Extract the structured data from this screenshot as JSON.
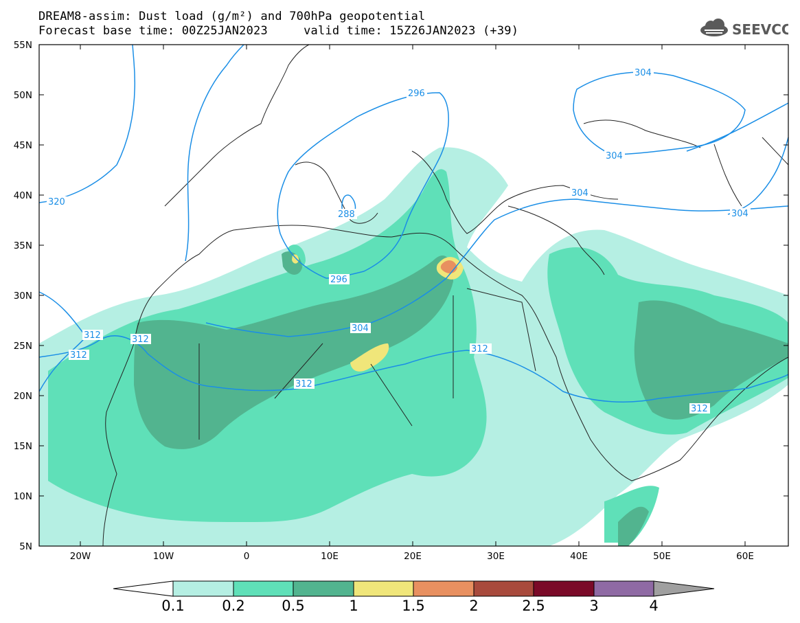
{
  "header": {
    "line1": "DREAM8-assim: Dust load (g/m²) and 700hPa geopotential",
    "line2": "Forecast base time: 00Z25JAN2023     valid time: 15Z26JAN2023 (+39)"
  },
  "logo": {
    "text": "SEEVCCC",
    "icon": "cloud-icon"
  },
  "map": {
    "lat_labels": [
      "55N",
      "50N",
      "45N",
      "40N",
      "35N",
      "30N",
      "25N",
      "20N",
      "15N",
      "10N",
      "5N"
    ],
    "lon_labels": [
      "20W",
      "10W",
      "0",
      "10E",
      "20E",
      "30E",
      "40E",
      "50E",
      "60E"
    ],
    "contour_labels": [
      "320",
      "312",
      "312",
      "312",
      "312",
      "312",
      "312",
      "304",
      "304",
      "304",
      "304",
      "304",
      "296",
      "296",
      "288"
    ],
    "contour_color": "#1a8ee6"
  },
  "colorbar": {
    "labels": [
      "0.1",
      "0.2",
      "0.5",
      "1",
      "1.5",
      "2",
      "2.5",
      "3",
      "4"
    ],
    "colors": [
      "#ffffff",
      "#b5efe3",
      "#5fe0b8",
      "#52b48f",
      "#f0e67a",
      "#e89060",
      "#a84a3c",
      "#7a0a28",
      "#8f6aa4",
      "#a0a0a0"
    ]
  }
}
